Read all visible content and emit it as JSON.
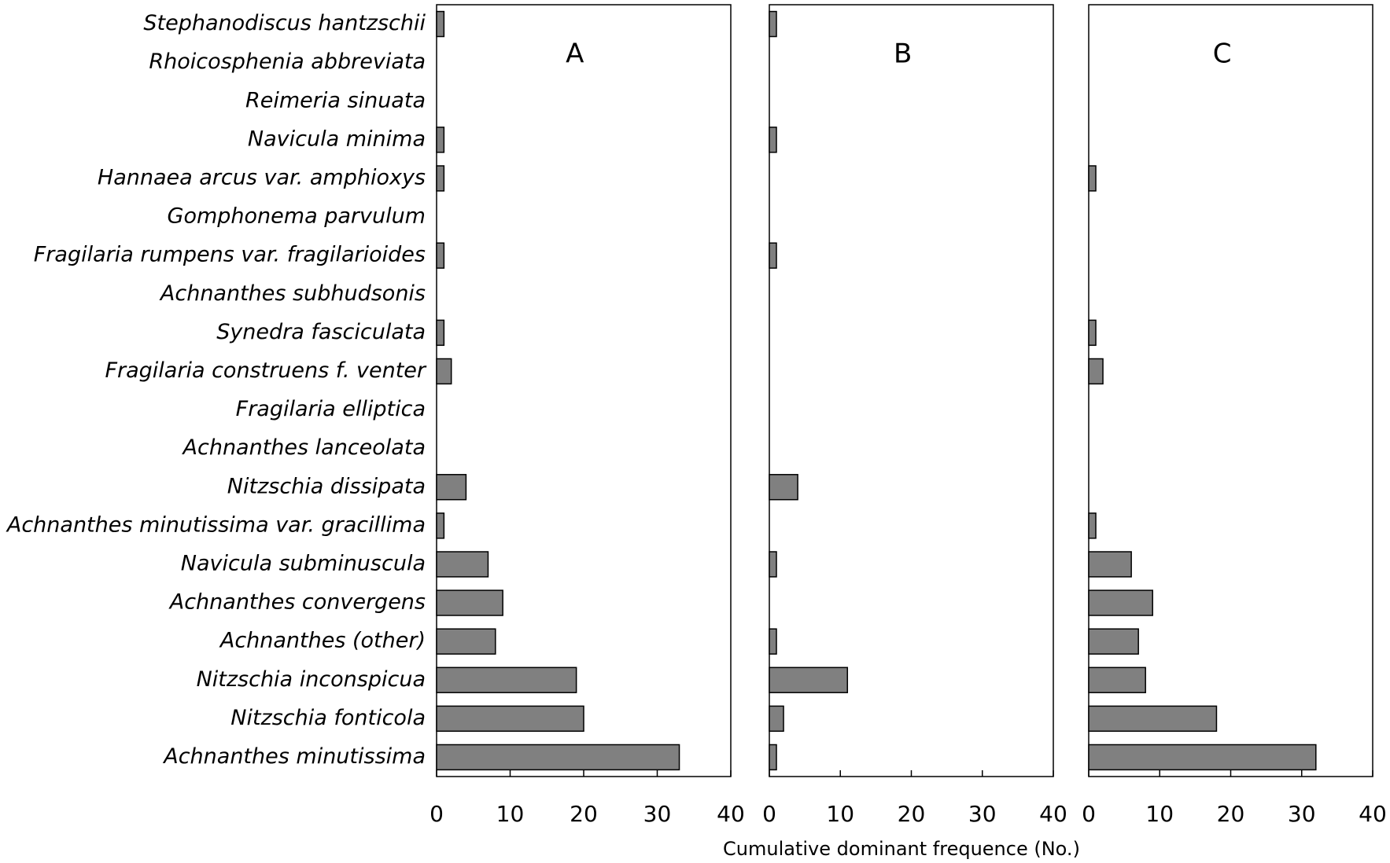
{
  "chart_data": {
    "type": "bar",
    "orientation": "horizontal",
    "x_label": "Cumulative dominant frequence (No.)",
    "categories": [
      "Stephanodiscus hantzschii",
      "Rhoicosphenia abbreviata",
      "Reimeria sinuata",
      "Navicula minima",
      "Hannaea arcus var. amphioxys",
      "Gomphonema parvulum",
      "Fragilaria rumpens var. fragilarioides",
      "Achnanthes subhudsonis",
      "Synedra fasciculata",
      "Fragilaria construens f. venter",
      "Fragilaria elliptica",
      "Achnanthes lanceolata",
      "Nitzschia dissipata",
      "Achnanthes minutissima var. gracillima",
      "Navicula subminuscula",
      "Achnanthes convergens",
      "Achnanthes (other)",
      "Nitzschia inconspicua",
      "Nitzschia fonticola",
      "Achnanthes minutissima"
    ],
    "series": [
      {
        "name": "A",
        "color": "#808080",
        "values": [
          1,
          0,
          0,
          1,
          1,
          0,
          1,
          0,
          1,
          2,
          0,
          0,
          4,
          1,
          7,
          9,
          8,
          19,
          20,
          33
        ]
      },
      {
        "name": "B",
        "color": "#808080",
        "values": [
          1,
          0,
          0,
          1,
          0,
          0,
          1,
          0,
          0,
          0,
          0,
          0,
          4,
          0,
          1,
          0,
          1,
          11,
          2,
          1
        ]
      },
      {
        "name": "C",
        "color": "#808080",
        "values": [
          0,
          0,
          0,
          0,
          1,
          0,
          0,
          0,
          1,
          2,
          0,
          0,
          0,
          1,
          6,
          9,
          7,
          8,
          18,
          32
        ]
      }
    ],
    "xlim": [
      0,
      40
    ],
    "xticks": [
      0,
      10,
      20,
      30,
      40
    ]
  }
}
